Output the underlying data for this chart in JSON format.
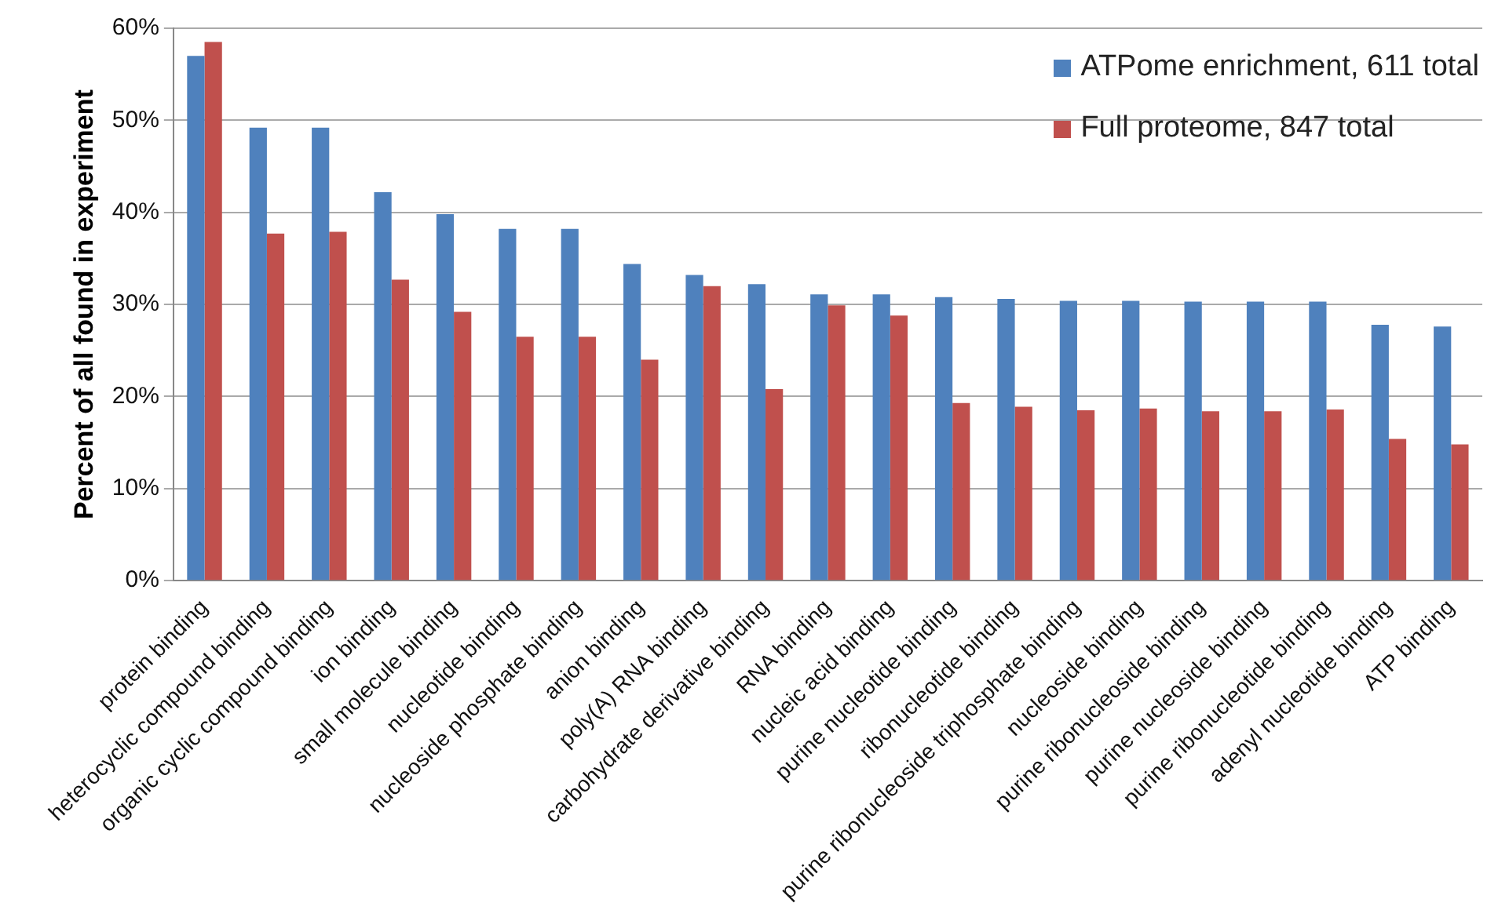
{
  "chart_data": {
    "type": "bar",
    "ylabel": "Percent of all found in experiment",
    "categories": [
      "protein binding",
      "heterocyclic compound binding",
      "organic cyclic compound binding",
      "ion binding",
      "small molecule binding",
      "nucleotide binding",
      "nucleoside phosphate binding",
      "anion binding",
      "poly(A) RNA binding",
      "carbohydrate derivative binding",
      "RNA binding",
      "nucleic acid binding",
      "purine nucleotide binding",
      "ribonucleotide binding",
      "purine ribonucleoside triphosphate binding",
      "nucleoside binding",
      "purine ribonucleoside binding",
      "purine nucleoside binding",
      "purine ribonucleotide binding",
      "adenyl nucleotide binding",
      "ATP binding"
    ],
    "series": [
      {
        "name": "ATPome enrichment, 611 total",
        "color": "#4f81bd",
        "values": [
          57,
          49.2,
          49.2,
          42.2,
          39.8,
          38.2,
          38.2,
          34.4,
          33.2,
          32.2,
          31.1,
          31.1,
          30.8,
          30.6,
          30.4,
          30.4,
          30.3,
          30.3,
          30.3,
          27.8,
          27.6
        ]
      },
      {
        "name": "Full proteome, 847 total",
        "color": "#c0504d",
        "values": [
          58.5,
          37.7,
          37.9,
          32.7,
          29.2,
          26.5,
          26.5,
          24.0,
          32.0,
          20.8,
          29.9,
          28.8,
          19.3,
          18.9,
          18.5,
          18.7,
          18.4,
          18.4,
          18.6,
          15.4,
          14.8
        ]
      }
    ],
    "ylim": [
      0,
      60
    ],
    "yticks": [
      {
        "value": 0,
        "label": "0%"
      },
      {
        "value": 10,
        "label": "10%"
      },
      {
        "value": 20,
        "label": "20%"
      },
      {
        "value": 30,
        "label": "30%"
      },
      {
        "value": 40,
        "label": "40%"
      },
      {
        "value": 50,
        "label": "50%"
      },
      {
        "value": 60,
        "label": "60%"
      }
    ],
    "grid": "y",
    "legend": "top right"
  }
}
